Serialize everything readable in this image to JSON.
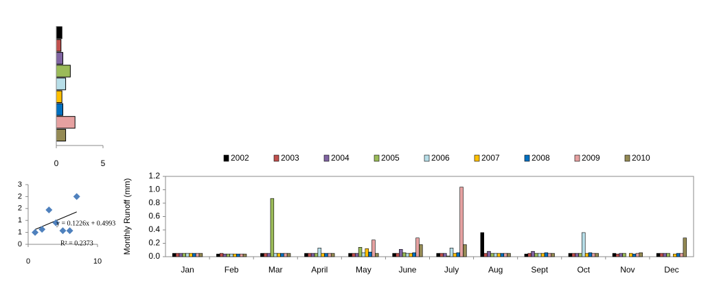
{
  "chart_data": [
    {
      "type": "hbar",
      "values": [
        0.6,
        0.5,
        0.7,
        1.5,
        1.0,
        0.6,
        0.7,
        2.0,
        1.0
      ],
      "colors": [
        "#000000",
        "#c0504d",
        "#8064a2",
        "#9bbb59",
        "#b7dee8",
        "#ffc000",
        "#0070c0",
        "#e6a1a1",
        "#948a54"
      ],
      "xlim": [
        0,
        5
      ],
      "xticks": [
        0,
        5
      ]
    },
    {
      "type": "scatter",
      "x": [
        1,
        2,
        3,
        4,
        5,
        6,
        7
      ],
      "values": [
        0.5,
        0.63,
        1.44,
        0.9,
        0.57,
        0.57,
        2.0
      ],
      "color": "#4f81bd",
      "xlim": [
        0,
        10
      ],
      "xticks": [
        0,
        10
      ],
      "ylim": [
        0,
        2.5
      ],
      "yticks": [
        0,
        {
          "value": 0.5,
          "label": "1"
        },
        1,
        {
          "value": 1.5,
          "label": "2"
        },
        2,
        {
          "value": 2.5,
          "label": "3"
        }
      ],
      "trendline": {
        "equation": "y = 0.1226x + 0.4993",
        "r2": "R² = 0.2373",
        "slope": 0.1226,
        "intercept": 0.4993
      }
    },
    {
      "type": "bar",
      "y_label": "Monthly  Runoff (mm)",
      "categories": [
        "Jan",
        "Feb",
        "Mar",
        "April",
        "May",
        "June",
        "July",
        "Aug",
        "Sept",
        "Oct",
        "Nov",
        "Dec"
      ],
      "ylim": [
        0,
        1.2
      ],
      "yticks": [
        {
          "value": 0,
          "label": "0.0"
        },
        0.2,
        0.4,
        0.6,
        0.8,
        {
          "value": 1.0,
          "label": "1.0"
        },
        1.2
      ],
      "series": [
        {
          "name": "2002",
          "color": "#000000",
          "values": [
            0.05,
            0.04,
            0.05,
            0.05,
            0.05,
            0.05,
            0.05,
            0.36,
            0.04,
            0.05,
            0.05,
            0.05
          ]
        },
        {
          "name": "2003",
          "color": "#c0504d",
          "values": [
            0.05,
            0.05,
            0.05,
            0.05,
            0.05,
            0.05,
            0.05,
            0.05,
            0.05,
            0.05,
            0.04,
            0.05
          ]
        },
        {
          "name": "2004",
          "color": "#8064a2",
          "values": [
            0.05,
            0.04,
            0.05,
            0.05,
            0.05,
            0.11,
            0.05,
            0.08,
            0.08,
            0.05,
            0.05,
            0.05
          ]
        },
        {
          "name": "2005",
          "color": "#9bbb59",
          "values": [
            0.05,
            0.04,
            0.87,
            0.05,
            0.14,
            0.06,
            0.01,
            0.05,
            0.05,
            0.05,
            0.05,
            0.05
          ]
        },
        {
          "name": "2006",
          "color": "#b7dee8",
          "values": [
            0.05,
            0.04,
            0.05,
            0.13,
            0.06,
            0.05,
            0.13,
            0.05,
            0.05,
            0.36,
            0.0,
            0.0
          ]
        },
        {
          "name": "2007",
          "color": "#ffc000",
          "values": [
            0.05,
            0.04,
            0.05,
            0.05,
            0.12,
            0.05,
            0.05,
            0.05,
            0.05,
            0.05,
            0.05,
            0.04
          ]
        },
        {
          "name": "2008",
          "color": "#0070c0",
          "values": [
            0.05,
            0.04,
            0.05,
            0.05,
            0.07,
            0.06,
            0.06,
            0.05,
            0.06,
            0.06,
            0.04,
            0.05
          ]
        },
        {
          "name": "2009",
          "color": "#e6a1a1",
          "values": [
            0.05,
            0.04,
            0.05,
            0.05,
            0.25,
            0.28,
            1.04,
            0.05,
            0.05,
            0.05,
            0.05,
            0.05
          ]
        },
        {
          "name": "2010",
          "color": "#948a54",
          "values": [
            0.05,
            0.04,
            0.05,
            0.05,
            0.05,
            0.18,
            0.18,
            0.05,
            0.05,
            0.05,
            0.06,
            0.28
          ]
        }
      ]
    }
  ]
}
